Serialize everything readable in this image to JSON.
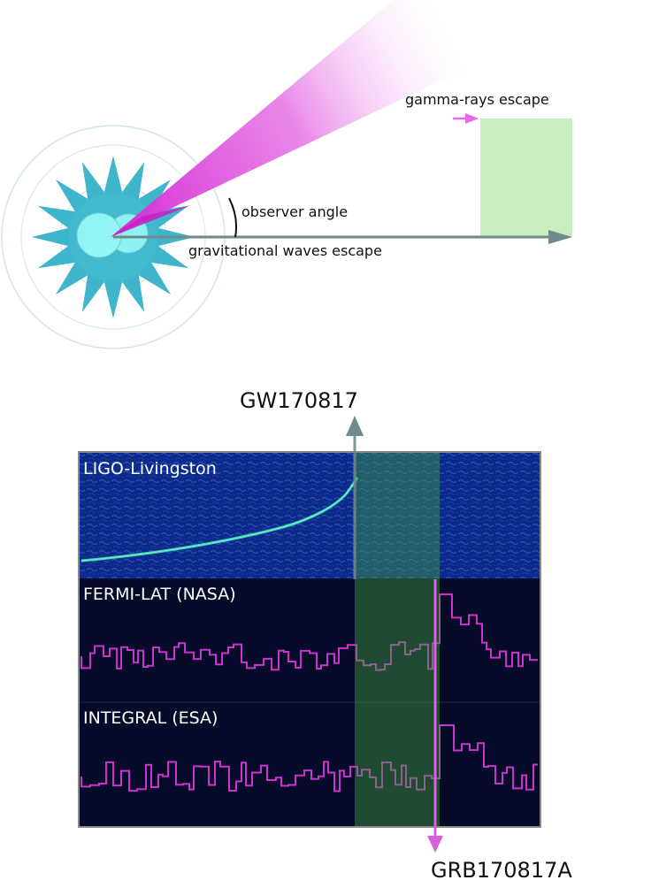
{
  "diagram": {
    "labels": {
      "gamma": "gamma-rays escape",
      "observer": "observer angle",
      "gw": "gravitational waves escape"
    }
  },
  "timeline": {
    "gw_event": "GW170817",
    "grb_event": "GRB170817A",
    "panels": {
      "ligo": "LIGO-Livingston",
      "fermi": "FERMI-LAT (NASA)",
      "integral": "INTEGRAL (ESA)"
    }
  },
  "colors": {
    "star": "#3eb5cb",
    "core": "#8ff2f2",
    "cone": "#e040e0",
    "box": "#c8eec0",
    "arrow": "#6f8a8a",
    "highlight": "#3e9a3e",
    "panel_bg": "#070b2a",
    "spectro_bg": "#0d2a8a",
    "trace": "#cc33cc"
  },
  "icons": [
    "arrow-up-icon",
    "arrow-down-icon",
    "arrow-right-icon"
  ]
}
